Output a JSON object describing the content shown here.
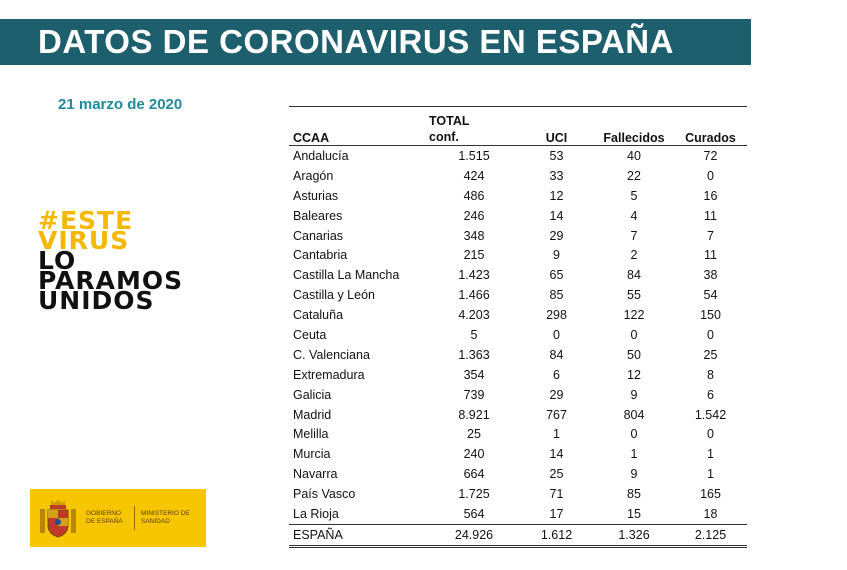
{
  "header": {
    "title": "DATOS DE CORONAVIRUS EN ESPAÑA"
  },
  "date": "21 marzo de 2020",
  "slogan": {
    "line1": "#ESTE",
    "line2": "VIRUS",
    "line3": "LO",
    "line4": "PARAMOS",
    "line5": "UNIDOS"
  },
  "logo": {
    "left_text": "GOBIERNO DE ESPAÑA",
    "right_text": "MINISTERIO DE SANIDAD",
    "icon": "spain-coat-of-arms-icon"
  },
  "colors": {
    "banner": "#1e5f6e",
    "date": "#1e8a9c",
    "slogan_yellow": "#f5b800",
    "logo_bg": "#f7c600"
  },
  "table": {
    "headers": {
      "ccaa": "CCAA",
      "total_line1": "TOTAL",
      "total_line2": "conf.",
      "uci": "UCI",
      "fallecidos": "Fallecidos",
      "curados": "Curados"
    },
    "rows": [
      [
        "Andalucía",
        "1.515",
        "53",
        "40",
        "72"
      ],
      [
        "Aragón",
        "424",
        "33",
        "22",
        "0"
      ],
      [
        "Asturias",
        "486",
        "12",
        "5",
        "16"
      ],
      [
        "Baleares",
        "246",
        "14",
        "4",
        "11"
      ],
      [
        "Canarias",
        "348",
        "29",
        "7",
        "7"
      ],
      [
        "Cantabria",
        "215",
        "9",
        "2",
        "11"
      ],
      [
        "Castilla La Mancha",
        "1.423",
        "65",
        "84",
        "38"
      ],
      [
        "Castilla y León",
        "1.466",
        "85",
        "55",
        "54"
      ],
      [
        "Cataluña",
        "4.203",
        "298",
        "122",
        "150"
      ],
      [
        "Ceuta",
        "5",
        "0",
        "0",
        "0"
      ],
      [
        "C. Valenciana",
        "1.363",
        "84",
        "50",
        "25"
      ],
      [
        "Extremadura",
        "354",
        "6",
        "12",
        "8"
      ],
      [
        "Galicia",
        "739",
        "29",
        "9",
        "6"
      ],
      [
        "Madrid",
        "8.921",
        "767",
        "804",
        "1.542"
      ],
      [
        "Melilla",
        "25",
        "1",
        "0",
        "0"
      ],
      [
        "Murcia",
        "240",
        "14",
        "1",
        "1"
      ],
      [
        "Navarra",
        "664",
        "25",
        "9",
        "1"
      ],
      [
        "País Vasco",
        "1.725",
        "71",
        "85",
        "165"
      ],
      [
        "La Rioja",
        "564",
        "17",
        "15",
        "18"
      ]
    ],
    "total": [
      "ESPAÑA",
      "24.926",
      "1.612",
      "1.326",
      "2.125"
    ]
  }
}
